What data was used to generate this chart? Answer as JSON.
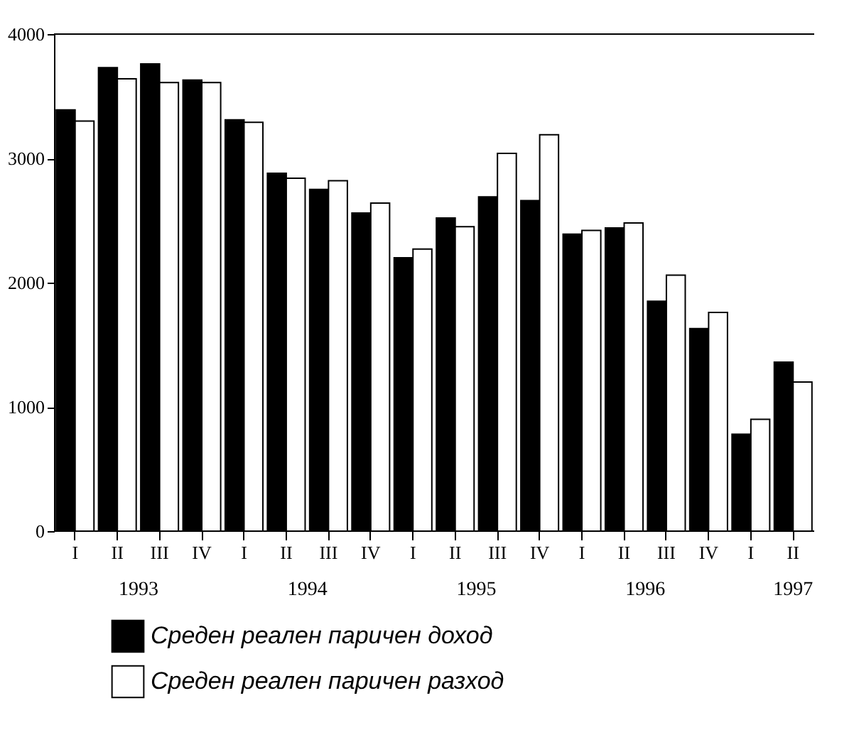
{
  "chart_data": {
    "type": "bar",
    "categories": [
      "I",
      "II",
      "III",
      "IV",
      "I",
      "II",
      "III",
      "IV",
      "I",
      "II",
      "III",
      "IV",
      "I",
      "II",
      "III",
      "IV",
      "I",
      "II"
    ],
    "series": [
      {
        "name": "Среден реален паричен доход",
        "color": "#000000",
        "values": [
          3390,
          3730,
          3760,
          3630,
          3310,
          2880,
          2750,
          2560,
          2200,
          2520,
          2690,
          2660,
          2390,
          2440,
          1850,
          1630,
          780,
          1360
        ]
      },
      {
        "name": "Среден реален паричен разход",
        "color": "#ffffff",
        "values": [
          3300,
          3640,
          3610,
          3610,
          3290,
          2840,
          2820,
          2640,
          2270,
          2450,
          3040,
          3190,
          2420,
          2480,
          2060,
          1760,
          900,
          1200
        ]
      }
    ],
    "annotations": [
      "1993",
      "1994",
      "1995",
      "1996",
      "1997"
    ],
    "ylim": [
      0,
      4000
    ],
    "yticks": [
      0,
      1000,
      2000,
      3000,
      4000
    ],
    "grid": false,
    "legend": "bottom"
  }
}
